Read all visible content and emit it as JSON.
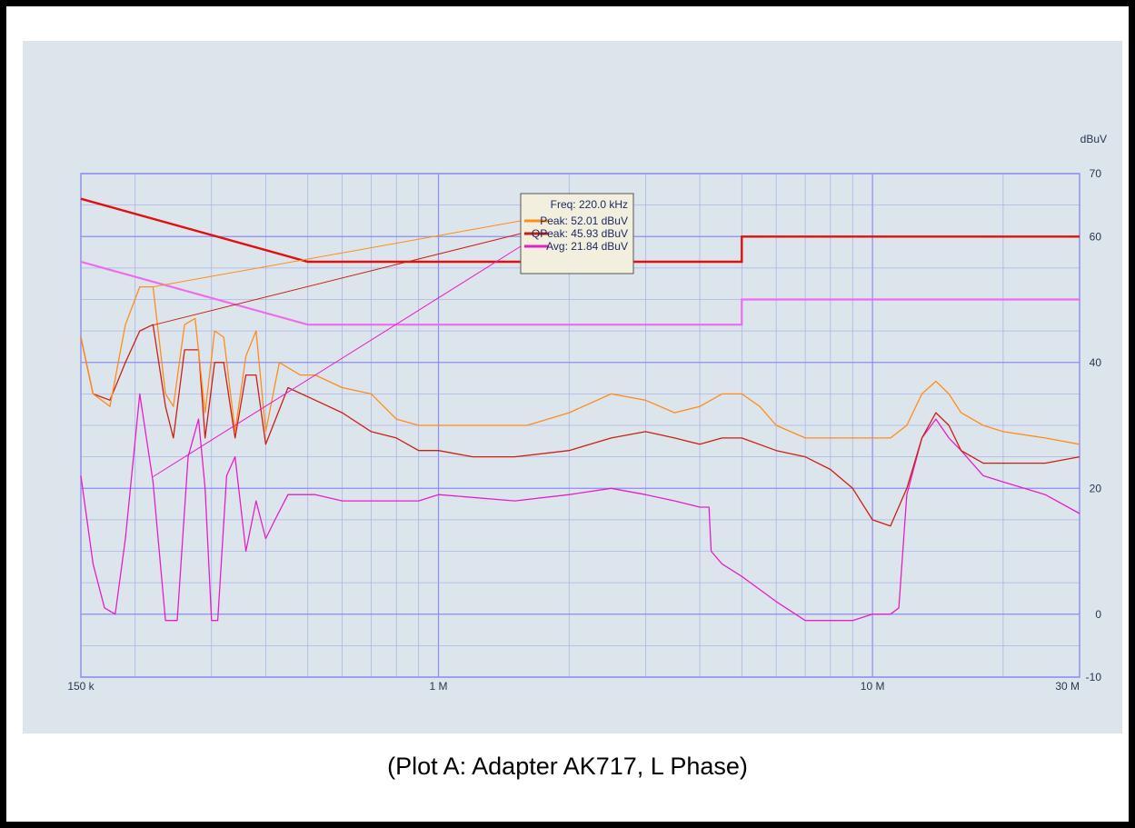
{
  "caption": "(Plot A: Adapter AK717, L Phase)",
  "colors": {
    "background": "#dde5ec",
    "grid_major": "#8c8cf0",
    "grid_minor": "#aab4e8",
    "peak": "#ff8c1a",
    "qpeak": "#cc1f12",
    "avg": "#e61ec8",
    "limit_qp": "#e01010",
    "limit_avg": "#ee6bee"
  },
  "chart_data": {
    "type": "line",
    "x_scale": "log",
    "xlim": [
      150000,
      30000000
    ],
    "ylim": [
      -10,
      70
    ],
    "yunit": "dBuV",
    "x_ticks": [
      {
        "value": 150000,
        "label": "150 k"
      },
      {
        "value": 1000000,
        "label": "1 M"
      },
      {
        "value": 10000000,
        "label": "10 M"
      },
      {
        "value": 30000000,
        "label": "30 M"
      }
    ],
    "y_ticks": [
      {
        "value": 70,
        "label": "70"
      },
      {
        "value": 60,
        "label": "60"
      },
      {
        "value": 40,
        "label": "40"
      },
      {
        "value": 20,
        "label": "20"
      },
      {
        "value": 0,
        "label": "0"
      },
      {
        "value": -10,
        "label": "-10"
      }
    ],
    "grid": true,
    "tooltip": {
      "freq": "Freq: 220.0 kHz",
      "entries": [
        {
          "text": "Peak: 52.01 dBuV",
          "series": "peak"
        },
        {
          "text": "QPeak: 45.93 dBuV",
          "series": "qpeak"
        },
        {
          "text": "Avg: 21.84 dBuV",
          "series": "avg"
        }
      ]
    },
    "limits": [
      {
        "id": "limit_qp",
        "points": [
          [
            150000,
            66
          ],
          [
            500000,
            56
          ],
          [
            5000000,
            56
          ],
          [
            5000000,
            60
          ],
          [
            30000000,
            60
          ]
        ]
      },
      {
        "id": "limit_avg",
        "points": [
          [
            150000,
            56
          ],
          [
            500000,
            46
          ],
          [
            5000000,
            46
          ],
          [
            5000000,
            50
          ],
          [
            30000000,
            50
          ]
        ]
      }
    ],
    "series": [
      {
        "id": "peak",
        "points": [
          [
            150000,
            44
          ],
          [
            160000,
            35
          ],
          [
            175000,
            33
          ],
          [
            190000,
            46
          ],
          [
            205000,
            52
          ],
          [
            220000,
            52
          ],
          [
            235000,
            35
          ],
          [
            245000,
            33
          ],
          [
            260000,
            46
          ],
          [
            275000,
            47
          ],
          [
            290000,
            32
          ],
          [
            305000,
            45
          ],
          [
            320000,
            44
          ],
          [
            340000,
            29
          ],
          [
            360000,
            41
          ],
          [
            380000,
            45
          ],
          [
            400000,
            29
          ],
          [
            430000,
            40
          ],
          [
            480000,
            38
          ],
          [
            520000,
            38
          ],
          [
            600000,
            36
          ],
          [
            700000,
            35
          ],
          [
            800000,
            31
          ],
          [
            900000,
            30
          ],
          [
            1000000,
            30
          ],
          [
            1300000,
            30
          ],
          [
            1600000,
            30
          ],
          [
            2000000,
            32
          ],
          [
            2500000,
            35
          ],
          [
            3000000,
            34
          ],
          [
            3500000,
            32
          ],
          [
            4000000,
            33
          ],
          [
            4500000,
            35
          ],
          [
            5000000,
            35
          ],
          [
            5500000,
            33
          ],
          [
            6000000,
            30
          ],
          [
            7000000,
            28
          ],
          [
            8000000,
            28
          ],
          [
            9000000,
            28
          ],
          [
            10000000,
            28
          ],
          [
            11000000,
            28
          ],
          [
            12000000,
            30
          ],
          [
            13000000,
            35
          ],
          [
            14000000,
            37
          ],
          [
            15000000,
            35
          ],
          [
            16000000,
            32
          ],
          [
            18000000,
            30
          ],
          [
            20000000,
            29
          ],
          [
            25000000,
            28
          ],
          [
            30000000,
            27
          ]
        ]
      },
      {
        "id": "qpeak",
        "points": [
          [
            150000,
            44
          ],
          [
            160000,
            35
          ],
          [
            175000,
            34
          ],
          [
            190000,
            40
          ],
          [
            205000,
            45
          ],
          [
            220000,
            46
          ],
          [
            235000,
            33
          ],
          [
            245000,
            28
          ],
          [
            260000,
            42
          ],
          [
            280000,
            42
          ],
          [
            290000,
            28
          ],
          [
            305000,
            40
          ],
          [
            320000,
            40
          ],
          [
            340000,
            28
          ],
          [
            360000,
            38
          ],
          [
            380000,
            38
          ],
          [
            400000,
            27
          ],
          [
            450000,
            36
          ],
          [
            520000,
            34
          ],
          [
            600000,
            32
          ],
          [
            700000,
            29
          ],
          [
            800000,
            28
          ],
          [
            900000,
            26
          ],
          [
            1000000,
            26
          ],
          [
            1200000,
            25
          ],
          [
            1500000,
            25
          ],
          [
            2000000,
            26
          ],
          [
            2500000,
            28
          ],
          [
            3000000,
            29
          ],
          [
            3500000,
            28
          ],
          [
            4000000,
            27
          ],
          [
            4500000,
            28
          ],
          [
            5000000,
            28
          ],
          [
            6000000,
            26
          ],
          [
            7000000,
            25
          ],
          [
            8000000,
            23
          ],
          [
            9000000,
            20
          ],
          [
            10000000,
            15
          ],
          [
            11000000,
            14
          ],
          [
            12000000,
            20
          ],
          [
            13000000,
            28
          ],
          [
            14000000,
            32
          ],
          [
            15000000,
            30
          ],
          [
            16000000,
            26
          ],
          [
            18000000,
            24
          ],
          [
            20000000,
            24
          ],
          [
            25000000,
            24
          ],
          [
            30000000,
            25
          ]
        ]
      },
      {
        "id": "avg",
        "points": [
          [
            150000,
            22
          ],
          [
            160000,
            8
          ],
          [
            170000,
            1
          ],
          [
            180000,
            0
          ],
          [
            190000,
            12
          ],
          [
            205000,
            35
          ],
          [
            220000,
            21
          ],
          [
            235000,
            -1
          ],
          [
            250000,
            -1
          ],
          [
            265000,
            25
          ],
          [
            280000,
            31
          ],
          [
            290000,
            20
          ],
          [
            300000,
            -1
          ],
          [
            310000,
            -1
          ],
          [
            325000,
            22
          ],
          [
            340000,
            25
          ],
          [
            360000,
            10
          ],
          [
            380000,
            18
          ],
          [
            400000,
            12
          ],
          [
            420000,
            15
          ],
          [
            450000,
            19
          ],
          [
            520000,
            19
          ],
          [
            600000,
            18
          ],
          [
            700000,
            18
          ],
          [
            800000,
            18
          ],
          [
            900000,
            18
          ],
          [
            1000000,
            19
          ],
          [
            1500000,
            18
          ],
          [
            2000000,
            19
          ],
          [
            2500000,
            20
          ],
          [
            3000000,
            19
          ],
          [
            3500000,
            18
          ],
          [
            4000000,
            17
          ],
          [
            4200000,
            17
          ],
          [
            4250000,
            10
          ],
          [
            4500000,
            8
          ],
          [
            5000000,
            6
          ],
          [
            6000000,
            2
          ],
          [
            7000000,
            -1
          ],
          [
            8000000,
            -1
          ],
          [
            9000000,
            -1
          ],
          [
            10000000,
            0
          ],
          [
            11000000,
            0
          ],
          [
            11500000,
            1
          ],
          [
            12000000,
            19
          ],
          [
            13000000,
            28
          ],
          [
            14000000,
            31
          ],
          [
            15000000,
            28
          ],
          [
            16000000,
            26
          ],
          [
            18000000,
            22
          ],
          [
            20000000,
            21
          ],
          [
            25000000,
            19
          ],
          [
            30000000,
            16
          ]
        ]
      }
    ]
  }
}
